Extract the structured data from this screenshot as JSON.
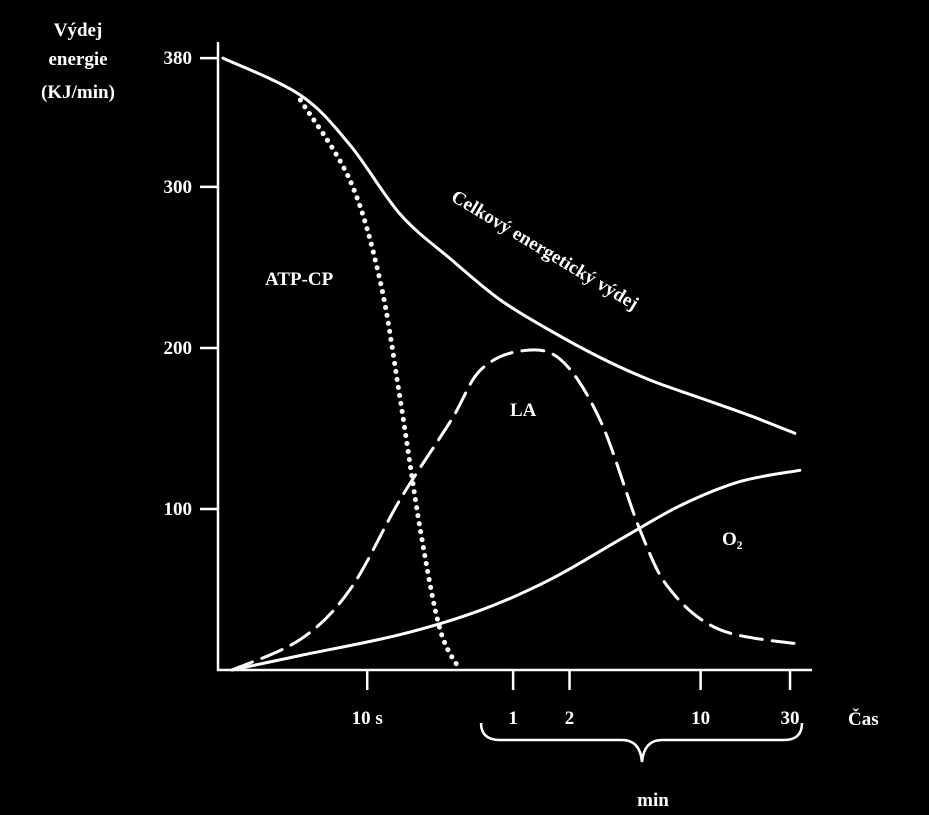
{
  "chart_data": {
    "type": "line",
    "y_label": [
      "Výdej",
      "energie",
      "(KJ/min)"
    ],
    "x_label": "Čas",
    "x_group_label": "min",
    "xscale": "log",
    "xlim": [
      1.6,
      2300
    ],
    "xticks": [
      {
        "value": 10,
        "label": "10 s"
      },
      {
        "value": 60,
        "label": "1"
      },
      {
        "value": 120,
        "label": "2"
      },
      {
        "value": 600,
        "label": "10"
      },
      {
        "value": 1800,
        "label": "30"
      }
    ],
    "ylim": [
      0,
      390
    ],
    "yticks": [
      380,
      300,
      200,
      100
    ],
    "series": [
      {
        "name": "Celkový energetický výdej",
        "color": "#ffffff",
        "style": "solid",
        "x": [
          1.7,
          4.4,
          8.1,
          15,
          28,
          51,
          94,
          175,
          323,
          596,
          1100,
          1910
        ],
        "values": [
          380,
          357,
          326,
          283,
          255,
          230,
          211,
          194,
          180,
          169,
          158,
          147
        ]
      },
      {
        "name": "ATP-CP",
        "color": "#ffffff",
        "style": "dotted",
        "x": [
          4.4,
          8.1,
          11.7,
          15,
          19.2,
          24.5,
          31.3
        ],
        "values": [
          354,
          304,
          242,
          168,
          87,
          25,
          0
        ]
      },
      {
        "name": "LA",
        "color": "#ffffff",
        "style": "dashed",
        "x": [
          1.9,
          4.4,
          8.1,
          15,
          28,
          40,
          65,
          107,
          175,
          285,
          412,
          762,
          2030
        ],
        "values": [
          0,
          19,
          50,
          106,
          155,
          186,
          198,
          193,
          155,
          87,
          50,
          25,
          16
        ]
      },
      {
        "name": "O₂",
        "color": "#ffffff",
        "style": "solid",
        "x": [
          1.9,
          4.4,
          15,
          40,
          94,
          223,
          466,
          973,
          2030
        ],
        "values": [
          0,
          9,
          22,
          37,
          56,
          81,
          102,
          117,
          124
        ]
      }
    ]
  }
}
